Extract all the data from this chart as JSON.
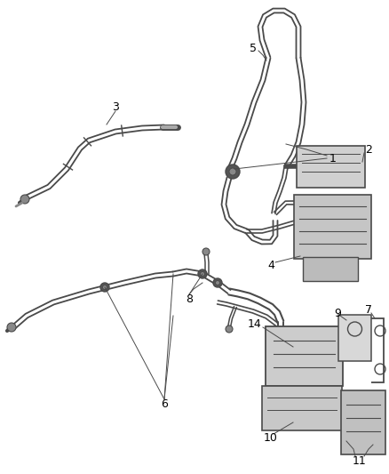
{
  "background_color": "#ffffff",
  "line_color": "#4a4a4a",
  "label_color": "#000000",
  "fig_width": 4.38,
  "fig_height": 5.33,
  "dpi": 100
}
